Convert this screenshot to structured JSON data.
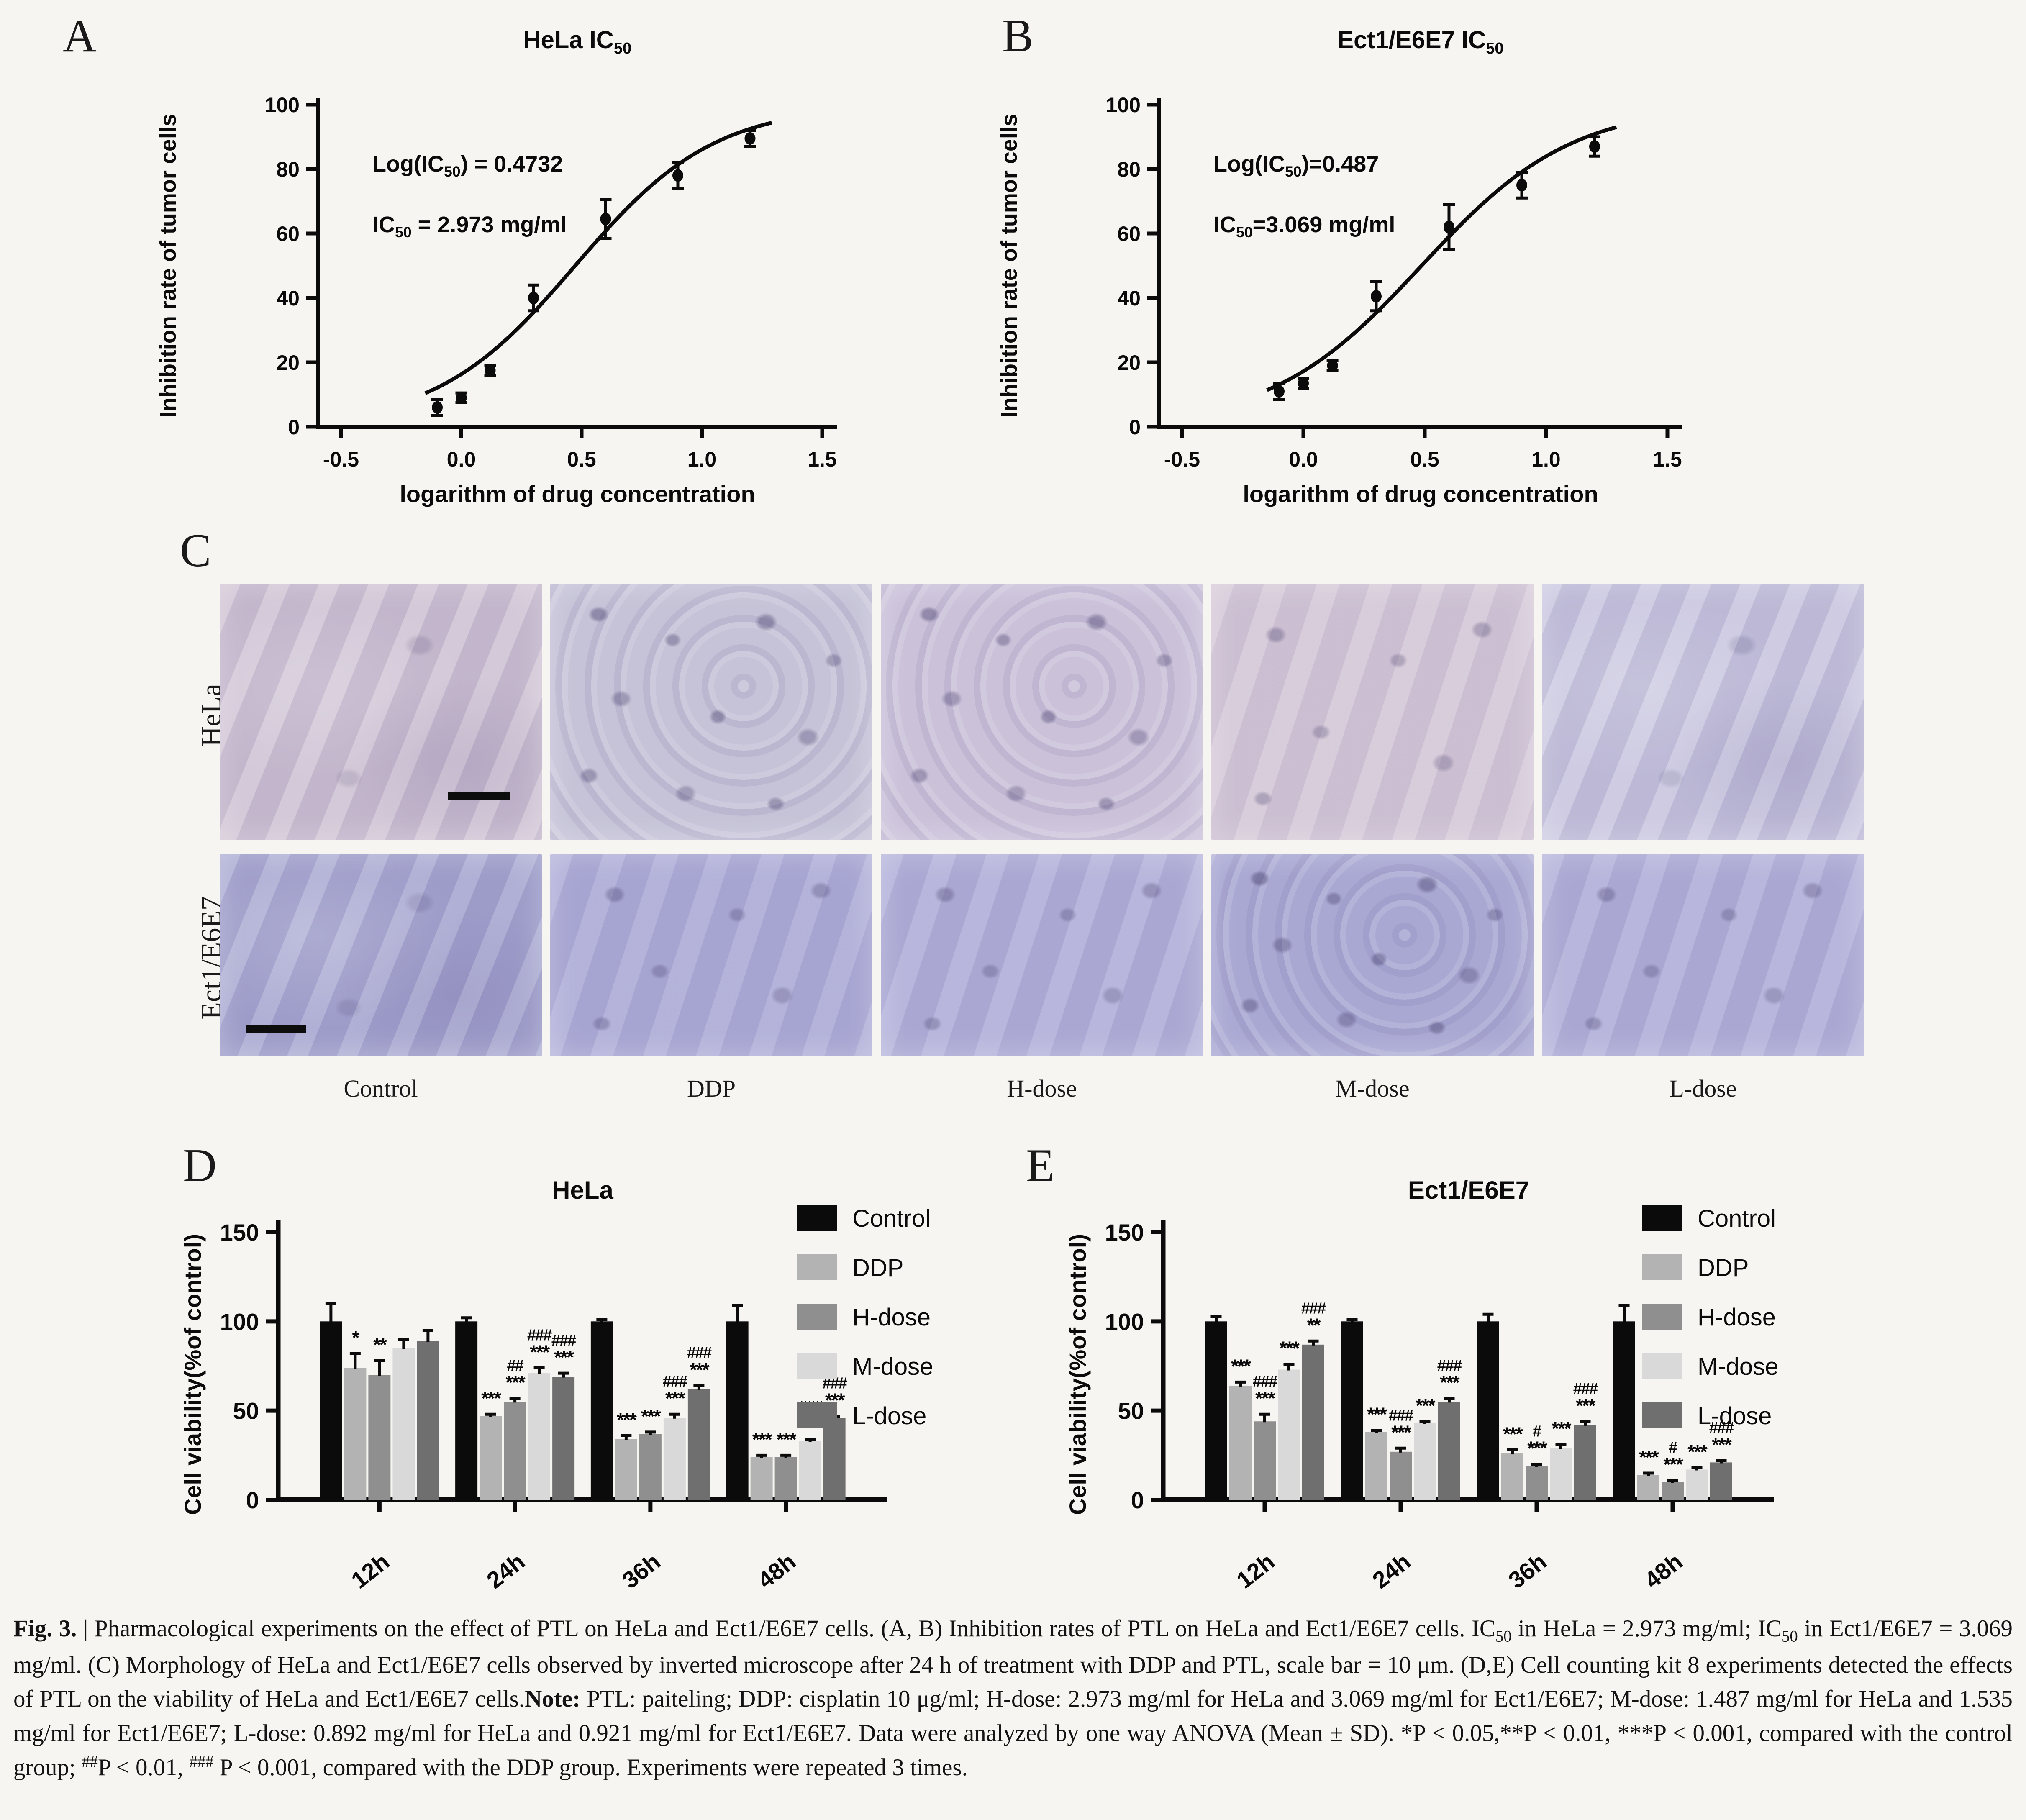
{
  "panels": {
    "a": "A",
    "b": "B",
    "c": "C",
    "d": "D",
    "e": "E"
  },
  "colors": {
    "axis": "#0b0b0b",
    "series": {
      "Control": "#0b0b0b",
      "DDP": "#b3b3b3",
      "H-dose": "#8f8f8f",
      "M-dose": "#d9d9d9",
      "L-dose": "#6f6f6f"
    }
  },
  "panel_c": {
    "rows": [
      {
        "label": "HeLa",
        "images": [
          {
            "label": "Control",
            "base": "#cdc0d2",
            "tex": "smooth",
            "scalebar": "br"
          },
          {
            "label": "DDP",
            "base": "#c6c3d8",
            "tex": "cells"
          },
          {
            "label": "H-dose",
            "base": "#cbc2da",
            "tex": "cells"
          },
          {
            "label": "M-dose",
            "base": "#d4c7d7",
            "tex": "sparse"
          },
          {
            "label": "L-dose",
            "base": "#c6c3de",
            "tex": "smooth"
          }
        ]
      },
      {
        "label": "Ect1/E6E7",
        "images": [
          {
            "label": "Control",
            "base": "#a3a3cf",
            "tex": "smooth",
            "scalebar": "bl"
          },
          {
            "label": "DDP",
            "base": "#abaad6",
            "tex": "sparse"
          },
          {
            "label": "H-dose",
            "base": "#b0aed8",
            "tex": "sparse"
          },
          {
            "label": "M-dose",
            "base": "#a9a8d3",
            "tex": "cells"
          },
          {
            "label": "L-dose",
            "base": "#b0aed8",
            "tex": "sparse"
          }
        ]
      }
    ],
    "col_labels": [
      "Control",
      "DDP",
      "H-dose",
      "M-dose",
      "L-dose"
    ]
  },
  "chart_data": [
    {
      "id": "A",
      "type": "scatter",
      "title_segs": [
        {
          "t": "HeLa IC"
        },
        {
          "t": "50",
          "s": "sub"
        }
      ],
      "xlabel": "logarithm of drug concentration",
      "ylabel": "Inhibition rate of tumor cells",
      "xlim": [
        -0.5,
        1.5
      ],
      "ylim": [
        0,
        100
      ],
      "xticks": [
        -0.5,
        0.0,
        0.5,
        1.0,
        1.5
      ],
      "yticks": [
        0,
        20,
        40,
        60,
        80,
        100
      ],
      "x": [
        -0.1,
        0.0,
        0.12,
        0.3,
        0.6,
        0.9,
        1.2
      ],
      "y": [
        6,
        9,
        17.5,
        40,
        64.5,
        78,
        89.5
      ],
      "err": [
        2.5,
        1.5,
        1.5,
        4,
        6,
        4,
        2.5
      ],
      "fit": {
        "logIC50": 0.4732,
        "hill": 1.5,
        "top": 100,
        "bottom": 0,
        "range": [
          -0.15,
          1.3
        ]
      },
      "annotations": [
        [
          {
            "t": "Log(IC"
          },
          {
            "t": "50",
            "s": "sub"
          },
          {
            "t": ") = 0.4732"
          }
        ],
        [
          {
            "t": "IC"
          },
          {
            "t": "50",
            "s": "sub"
          },
          {
            "t": " = 2.973 mg/ml"
          }
        ]
      ]
    },
    {
      "id": "B",
      "type": "scatter",
      "title_segs": [
        {
          "t": "Ect1/E6E7  IC"
        },
        {
          "t": "50",
          "s": "sub"
        }
      ],
      "xlabel": "logarithm of drug concentration",
      "ylabel": "Inhibition rate of tumor cells",
      "xlim": [
        -0.5,
        1.5
      ],
      "ylim": [
        0,
        100
      ],
      "xticks": [
        -0.5,
        0.0,
        0.5,
        1.0,
        1.5
      ],
      "yticks": [
        0,
        20,
        40,
        60,
        80,
        100
      ],
      "x": [
        -0.1,
        0.0,
        0.12,
        0.3,
        0.6,
        0.9,
        1.2
      ],
      "y": [
        11,
        13.5,
        19,
        40.5,
        62,
        75,
        87
      ],
      "err": [
        2.5,
        1.5,
        1.5,
        4.5,
        7,
        4,
        3
      ],
      "fit": {
        "logIC50": 0.487,
        "hill": 1.4,
        "top": 100,
        "bottom": 0,
        "range": [
          -0.15,
          1.3
        ]
      },
      "annotations": [
        [
          {
            "t": "Log(IC"
          },
          {
            "t": "50",
            "s": "sub"
          },
          {
            "t": ")=0.487"
          }
        ],
        [
          {
            "t": "IC"
          },
          {
            "t": "50",
            "s": "sub"
          },
          {
            "t": "=3.069 mg/ml"
          }
        ]
      ]
    },
    {
      "id": "D",
      "type": "bar",
      "title": "HeLa",
      "ylabel": "Cell viability(%of control)",
      "ylim": [
        0,
        150
      ],
      "yticks": [
        0,
        50,
        100,
        150
      ],
      "categories": [
        "12h",
        "24h",
        "36h",
        "48h"
      ],
      "series": [
        {
          "name": "Control",
          "color": "#0b0b0b",
          "values": [
            100,
            100,
            100,
            100
          ],
          "err": [
            10,
            2,
            1,
            9
          ],
          "sig": [
            "",
            "",
            "",
            ""
          ]
        },
        {
          "name": "DDP",
          "color": "#b3b3b3",
          "values": [
            74,
            47,
            34,
            24
          ],
          "err": [
            8,
            1,
            2,
            1
          ],
          "sig": [
            "*",
            "***",
            "***",
            "***"
          ]
        },
        {
          "name": "H-dose",
          "color": "#8f8f8f",
          "values": [
            70,
            55,
            37,
            24
          ],
          "err": [
            8,
            2,
            1,
            1
          ],
          "sig": [
            "**",
            "***|##",
            "***",
            "***"
          ]
        },
        {
          "name": "M-dose",
          "color": "#d9d9d9",
          "values": [
            85,
            71,
            46,
            33
          ],
          "err": [
            5,
            3,
            2,
            1
          ],
          "sig": [
            "",
            "***|###",
            "***|###",
            "***|###"
          ]
        },
        {
          "name": "L-dose",
          "color": "#6f6f6f",
          "values": [
            89,
            69,
            62,
            46
          ],
          "err": [
            6,
            2,
            2,
            1
          ],
          "sig": [
            "",
            "***|###",
            "***|###",
            "***|###"
          ]
        }
      ]
    },
    {
      "id": "E",
      "type": "bar",
      "title": "Ect1/E6E7",
      "ylabel": "Cell viability(%of control)",
      "ylim": [
        0,
        150
      ],
      "yticks": [
        0,
        50,
        100,
        150
      ],
      "categories": [
        "12h",
        "24h",
        "36h",
        "48h"
      ],
      "series": [
        {
          "name": "Control",
          "color": "#0b0b0b",
          "values": [
            100,
            100,
            100,
            100
          ],
          "err": [
            3,
            1,
            4,
            9
          ],
          "sig": [
            "",
            "",
            "",
            ""
          ]
        },
        {
          "name": "DDP",
          "color": "#b3b3b3",
          "values": [
            64,
            38,
            26,
            14
          ],
          "err": [
            2,
            1,
            2,
            1
          ],
          "sig": [
            "***",
            "***",
            "***",
            "***"
          ]
        },
        {
          "name": "H-dose",
          "color": "#8f8f8f",
          "values": [
            44,
            27,
            19,
            10
          ],
          "err": [
            4,
            2,
            1,
            1
          ],
          "sig": [
            "***|###",
            "***|###",
            "***|#",
            "***|#"
          ]
        },
        {
          "name": "M-dose",
          "color": "#d9d9d9",
          "values": [
            73,
            43,
            29,
            17
          ],
          "err": [
            3,
            1,
            2,
            1
          ],
          "sig": [
            "***",
            "***",
            "***",
            "***"
          ]
        },
        {
          "name": "L-dose",
          "color": "#6f6f6f",
          "values": [
            87,
            55,
            42,
            21
          ],
          "err": [
            2,
            2,
            2,
            1
          ],
          "sig": [
            "**|###",
            "***|###",
            "***|###",
            "***|###"
          ]
        }
      ]
    }
  ],
  "caption": {
    "segments": [
      {
        "t": "Fig. 3.",
        "s": "b"
      },
      {
        "t": " | Pharmacological experiments on the effect of PTL on HeLa and Ect1/E6E7 cells. (A, B) Inhibition rates of PTL on HeLa and Ect1/E6E7 cells. IC",
        "s": ""
      },
      {
        "t": "50",
        "s": "sub"
      },
      {
        "t": " in HeLa = 2.973 mg/ml; IC",
        "s": ""
      },
      {
        "t": "50",
        "s": "sub"
      },
      {
        "t": " in Ect1/E6E7 = 3.069 mg/ml. (C) Morphology of HeLa and Ect1/E6E7 cells observed by inverted microscope after 24 h of treatment with DDP and PTL, scale bar = 10 μm. (D,E) Cell counting kit 8 experiments detected the effects of PTL on the viability of HeLa and Ect1/E6E7 cells.",
        "s": ""
      },
      {
        "t": "Note:",
        "s": "b"
      },
      {
        "t": " PTL: paiteling; DDP: cisplatin 10 μg/ml; H-dose: 2.973 mg/ml for HeLa and 3.069 mg/ml for Ect1/E6E7; M-dose: 1.487 mg/ml for HeLa and 1.535 mg/ml for Ect1/E6E7; L-dose: 0.892 mg/ml for HeLa and 0.921 mg/ml for Ect1/E6E7. Data were analyzed by one way ANOVA (Mean ± SD). *P < 0.05,**P < 0.01, ***P < 0.001, compared with the control group; ",
        "s": ""
      },
      {
        "t": "##",
        "s": "sup"
      },
      {
        "t": "P < 0.01, ",
        "s": ""
      },
      {
        "t": "###",
        "s": "sup"
      },
      {
        "t": " P < 0.001, compared with the DDP group. Experiments were repeated 3 times.",
        "s": ""
      }
    ]
  }
}
